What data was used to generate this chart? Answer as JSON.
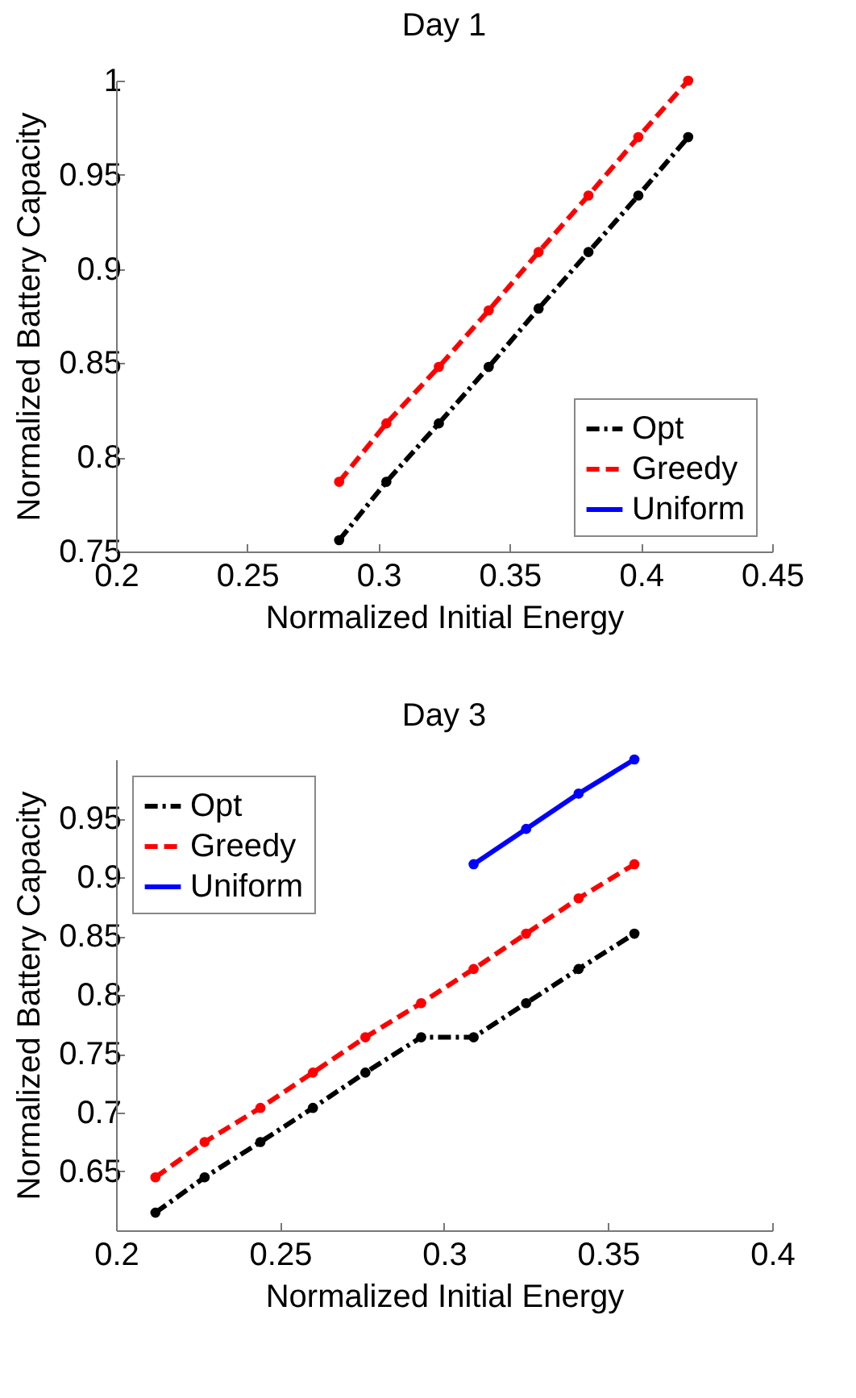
{
  "chart_data": [
    {
      "type": "line",
      "title": "Day 1",
      "xlabel": "Normalized Initial Energy",
      "ylabel": "Normalized Battery Capacity",
      "xlim": [
        0.2,
        0.45
      ],
      "xticks": [
        0.2,
        0.25,
        0.3,
        0.35,
        0.4,
        0.45
      ],
      "ylim": [
        0.75,
        1
      ],
      "yticks": [
        0.75,
        0.8,
        0.85,
        0.9,
        0.95,
        1
      ],
      "grid": false,
      "legend": "bottom right",
      "marker": "circle",
      "series": [
        {
          "name": "Opt",
          "color": "#000000",
          "line_style": "dashdot",
          "x": [
            0.285,
            0.303,
            0.323,
            0.342,
            0.361,
            0.38,
            0.399,
            0.418
          ],
          "values": [
            0.756,
            0.787,
            0.818,
            0.848,
            0.879,
            0.909,
            0.939,
            0.97
          ]
        },
        {
          "name": "Greedy",
          "color": "#ff0000",
          "line_style": "dashed",
          "x": [
            0.285,
            0.303,
            0.323,
            0.342,
            0.361,
            0.38,
            0.399,
            0.418
          ],
          "values": [
            0.787,
            0.818,
            0.848,
            0.878,
            0.909,
            0.939,
            0.97,
            1.0
          ]
        },
        {
          "name": "Uniform",
          "color": "#0000ff",
          "line_style": "solid"
        }
      ]
    },
    {
      "type": "line",
      "title": "Day 3",
      "xlabel": "Normalized Initial Energy",
      "ylabel": "Normalized Battery Capacity",
      "xlim": [
        0.2,
        0.4
      ],
      "xticks": [
        0.2,
        0.25,
        0.3,
        0.35,
        0.4
      ],
      "ylim": [
        0.6,
        1
      ],
      "yticks": [
        0.65,
        0.7,
        0.75,
        0.8,
        0.85,
        0.9,
        0.95
      ],
      "grid": false,
      "legend": "top left",
      "marker": "circle",
      "series": [
        {
          "name": "Opt",
          "color": "#000000",
          "line_style": "dashdot",
          "x": [
            0.212,
            0.227,
            0.244,
            0.26,
            0.276,
            0.293,
            0.309,
            0.325,
            0.341,
            0.358
          ],
          "values": [
            0.615,
            0.645,
            0.675,
            0.704,
            0.734,
            0.764,
            0.764,
            0.793,
            0.822,
            0.852
          ]
        },
        {
          "name": "Greedy",
          "color": "#ff0000",
          "line_style": "dashed",
          "x": [
            0.212,
            0.227,
            0.244,
            0.26,
            0.276,
            0.293,
            0.309,
            0.325,
            0.341,
            0.358
          ],
          "values": [
            0.645,
            0.675,
            0.704,
            0.734,
            0.764,
            0.793,
            0.822,
            0.852,
            0.882,
            0.911
          ]
        },
        {
          "name": "Uniform",
          "color": "#0000ff",
          "line_style": "solid",
          "x": [
            0.309,
            0.325,
            0.341,
            0.358
          ],
          "values": [
            0.911,
            0.941,
            0.971,
            1.0
          ]
        }
      ]
    }
  ]
}
